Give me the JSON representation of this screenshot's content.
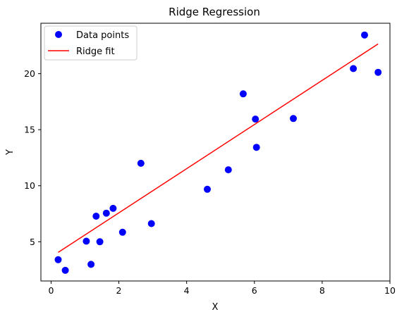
{
  "chart_data": {
    "type": "scatter",
    "title": "Ridge Regression",
    "xlabel": "X",
    "ylabel": "Y",
    "xlim": [
      -0.3,
      10.0
    ],
    "ylim": [
      1.5,
      24.5
    ],
    "xticks": [
      0,
      2,
      4,
      6,
      8,
      10
    ],
    "yticks": [
      5,
      10,
      15,
      20
    ],
    "grid": false,
    "legend_position": "top-left",
    "series": [
      {
        "name": "Data points",
        "kind": "scatter",
        "color": "#0000ff",
        "points": [
          [
            0.21,
            3.4
          ],
          [
            0.42,
            2.45
          ],
          [
            1.04,
            5.05
          ],
          [
            1.18,
            2.98
          ],
          [
            1.33,
            7.28
          ],
          [
            1.44,
            5.0
          ],
          [
            1.63,
            7.55
          ],
          [
            1.83,
            7.98
          ],
          [
            2.11,
            5.85
          ],
          [
            2.65,
            12.0
          ],
          [
            2.96,
            6.62
          ],
          [
            4.61,
            9.68
          ],
          [
            5.23,
            11.42
          ],
          [
            5.67,
            18.2
          ],
          [
            6.03,
            15.95
          ],
          [
            6.06,
            13.43
          ],
          [
            7.15,
            16.0
          ],
          [
            8.92,
            20.45
          ],
          [
            9.25,
            23.45
          ],
          [
            9.65,
            20.12
          ]
        ]
      },
      {
        "name": "Ridge fit",
        "kind": "line",
        "color": "#ff0000",
        "points": [
          [
            0.21,
            4.05
          ],
          [
            9.65,
            22.65
          ]
        ]
      }
    ]
  }
}
